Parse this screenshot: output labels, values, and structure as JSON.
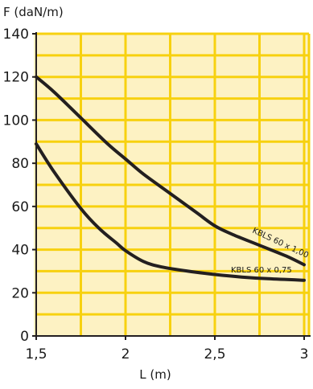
{
  "chart_data": {
    "type": "line",
    "title": "",
    "xlabel": "L (m)",
    "ylabel": "F (daN/m)",
    "xlim": [
      1.5,
      3
    ],
    "ylim": [
      0,
      140
    ],
    "x_ticks": [
      "1,5",
      "2",
      "2,5",
      "3"
    ],
    "y_ticks": [
      "0",
      "20",
      "40",
      "60",
      "80",
      "100",
      "120",
      "140"
    ],
    "grid": true,
    "colors": {
      "plot_background": "#fdf2c3",
      "grid": "#f7d10f",
      "line": "#231f20"
    },
    "series": [
      {
        "name": "KBLS 60 x 1,00",
        "x": [
          1.5,
          1.6,
          1.75,
          1.9,
          2.0,
          2.1,
          2.25,
          2.4,
          2.5,
          2.6,
          2.75,
          2.9,
          3.0
        ],
        "y": [
          120,
          113,
          101,
          89,
          82,
          75,
          66,
          57,
          51,
          47,
          42,
          37,
          33
        ]
      },
      {
        "name": "KBLS 60 x 0,75",
        "x": [
          1.5,
          1.6,
          1.75,
          1.85,
          1.95,
          2.0,
          2.1,
          2.2,
          2.35,
          2.5,
          2.65,
          2.8,
          3.0
        ],
        "y": [
          89,
          76,
          59,
          50,
          43,
          39.5,
          34.5,
          32,
          30,
          28.5,
          27.3,
          26.5,
          25.8
        ]
      }
    ]
  }
}
